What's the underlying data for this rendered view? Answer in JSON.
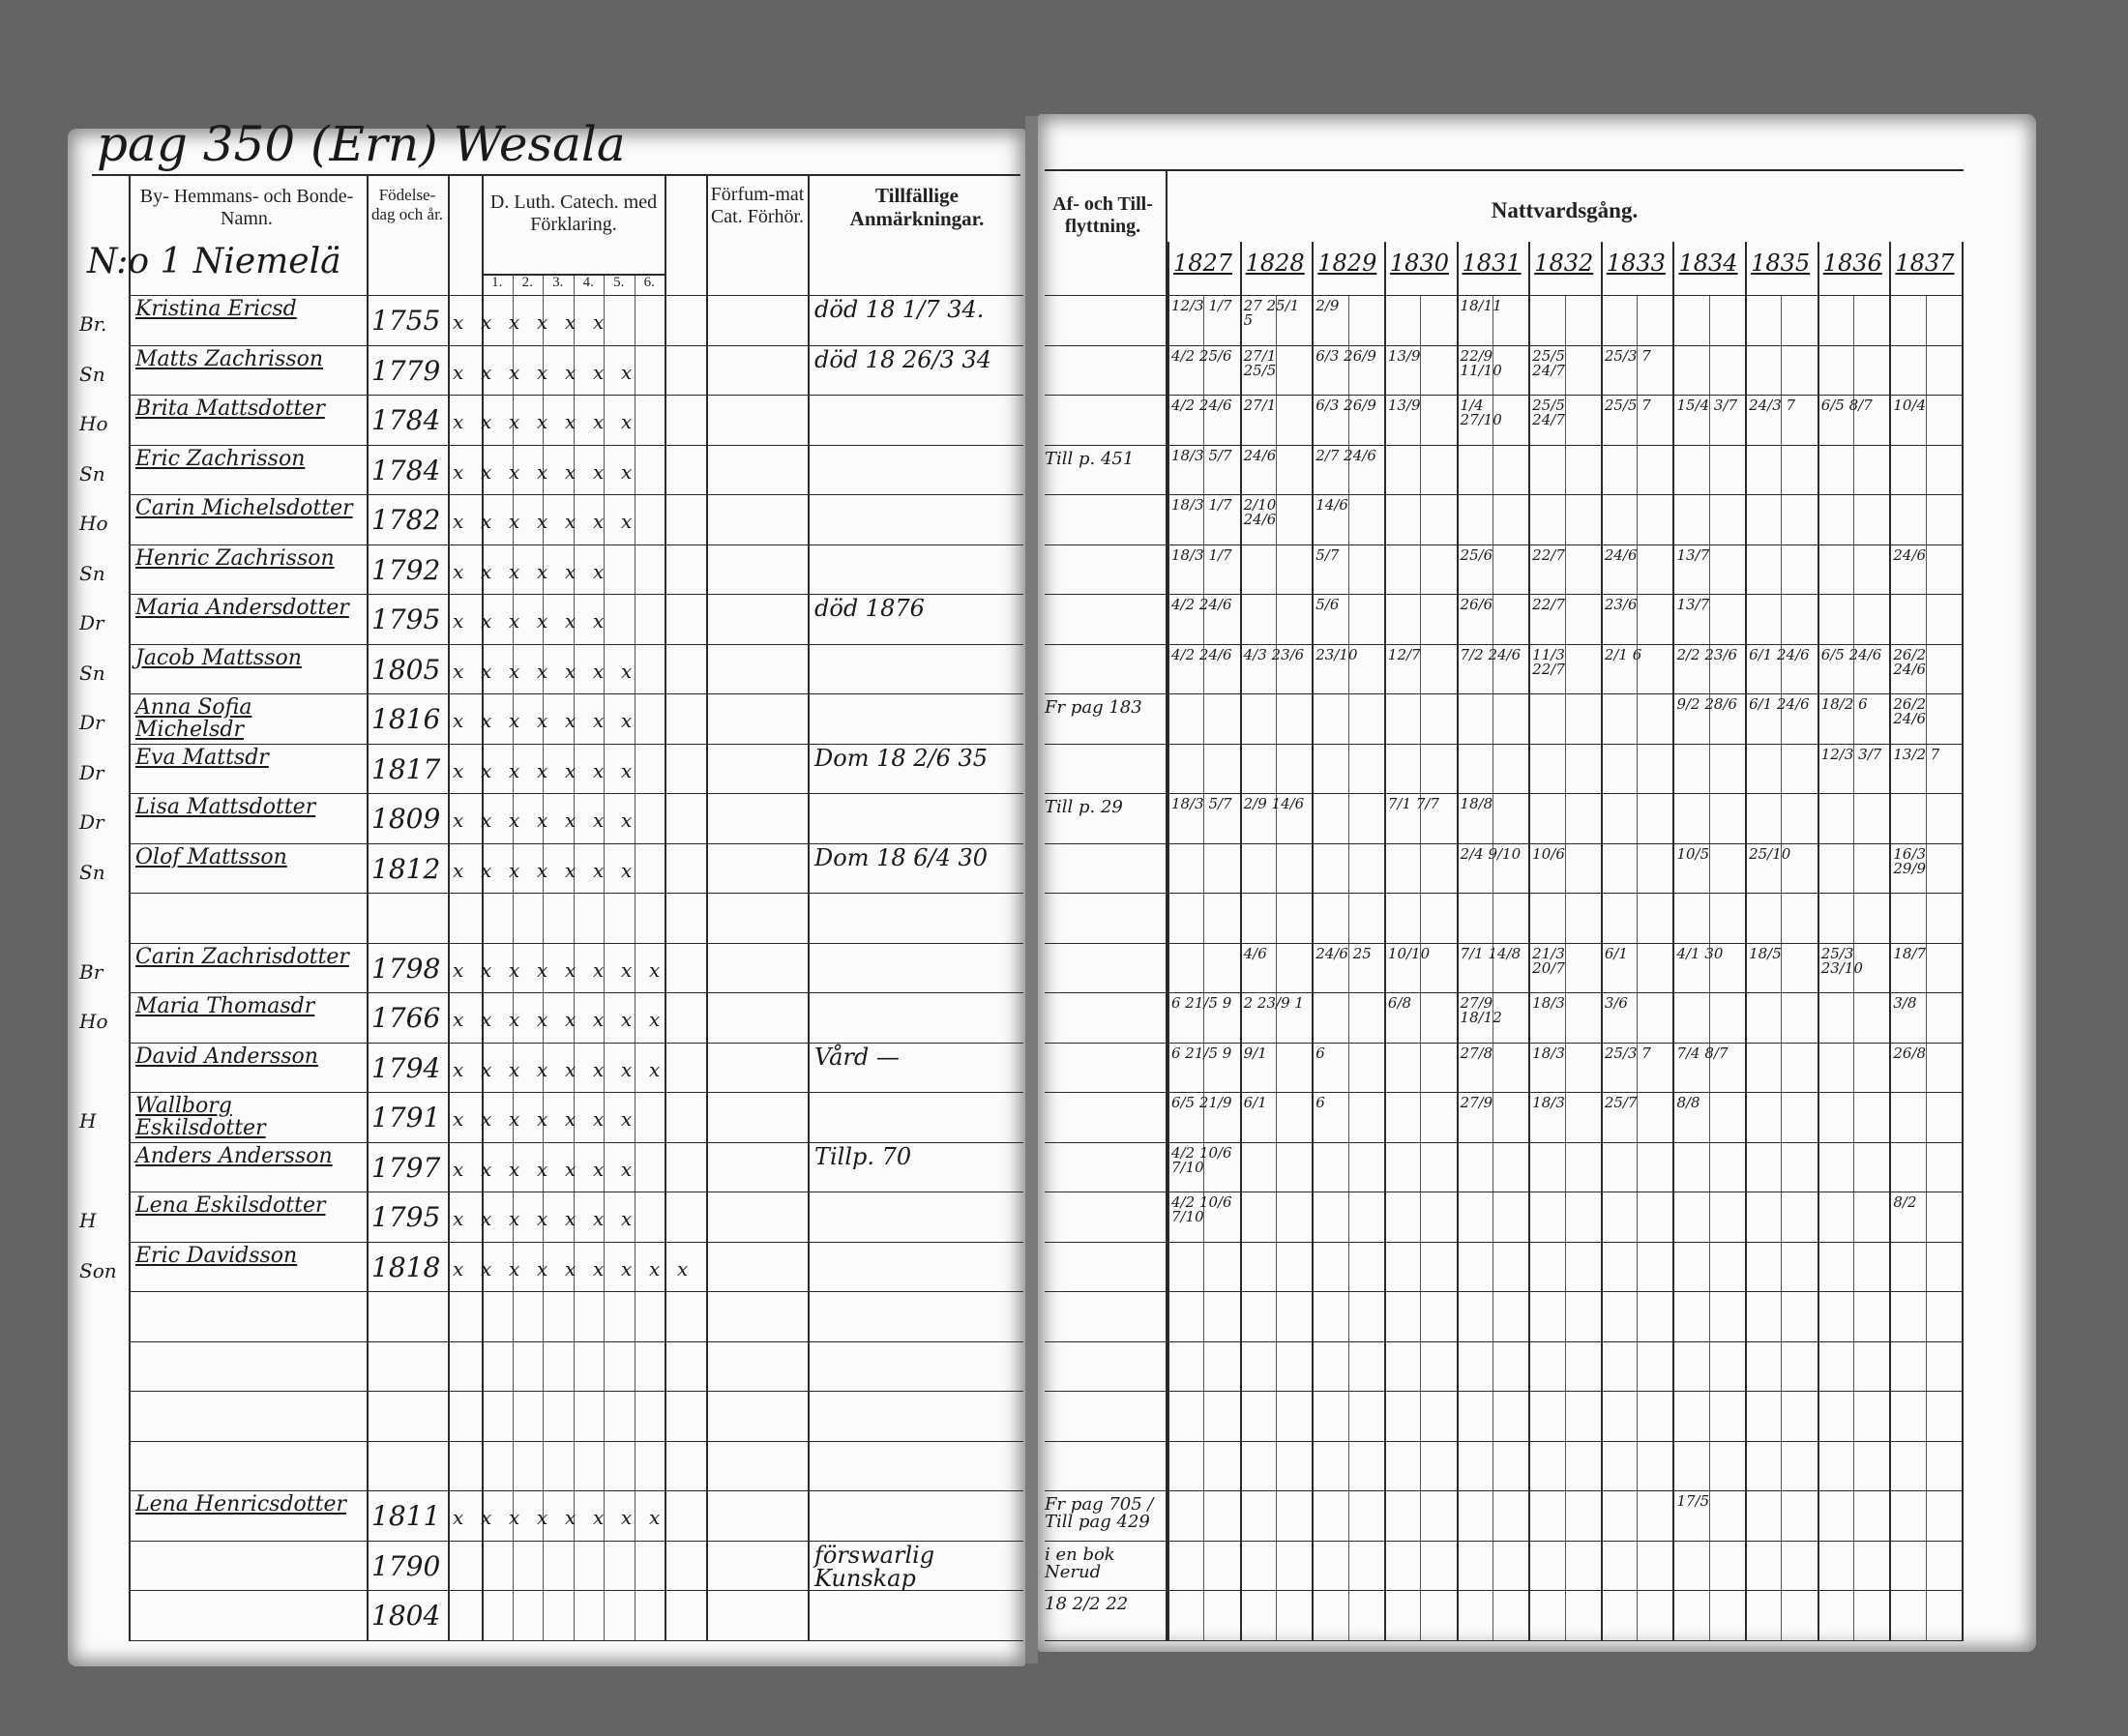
{
  "document": {
    "title": "pag 350 (Ern) Wesala",
    "farm": "N:o 1 Niemelä",
    "left_headers": {
      "name": "By- Hemmans- och Bonde-Namn.",
      "birth": "Födelse-dag och år.",
      "catechism": "D. Luth. Catech. med Förklaring.",
      "catechism_parts": [
        "1.",
        "2.",
        "3.",
        "4.",
        "5.",
        "6."
      ],
      "missed": "Förfum-mat Cat. Förhör.",
      "remarks": "Tillfällige Anmärkningar."
    },
    "right_headers": {
      "moving": "Af- och Till-flyttning.",
      "communion": "Nattvardsgång.",
      "years": [
        "1827",
        "1828",
        "1829",
        "1830",
        "1831",
        "1832",
        "1833",
        "1834",
        "1835",
        "1836",
        "1837"
      ]
    },
    "rows": [
      {
        "prefix": "Br.",
        "name": "Kristina Ericsd",
        "born": "1755",
        "marks": "x x x x x x",
        "remark": "död 18 1/7 34.",
        "move": "",
        "communion": {
          "1827": "12/3 1/7",
          "1828": "27 25/1 5",
          "1829": "2/9",
          "1831": "18/11"
        }
      },
      {
        "prefix": "Sn",
        "name": "Matts Zachrisson",
        "born": "1779",
        "marks": "x x x x x x x",
        "remark": "död 18 26/3 34",
        "move": "",
        "communion": {
          "1827": "4/2 25/6",
          "1828": "27/1 25/5",
          "1829": "6/3 26/9",
          "1830": "13/9",
          "1831": "22/9 11/10",
          "1832": "25/5 24/7",
          "1833": "25/3 7"
        }
      },
      {
        "prefix": "Ho",
        "name": "Brita Mattsdotter",
        "born": "1784",
        "marks": "x x x x x x x",
        "remark": "",
        "move": "",
        "communion": {
          "1827": "4/2 24/6",
          "1828": "27/1",
          "1829": "6/3 26/9",
          "1830": "13/9",
          "1831": "1/4 27/10",
          "1832": "25/5 24/7",
          "1833": "25/5 7",
          "1834": "15/4 3/7",
          "1835": "24/3 7",
          "1836": "6/5 8/7",
          "1837": "10/4"
        }
      },
      {
        "prefix": "Sn",
        "name": "Eric Zachrisson",
        "born": "1784",
        "marks": "x x x x x x x",
        "remark": "",
        "move": "Till p. 451",
        "communion": {
          "1827": "18/3 5/7",
          "1828": "24/6",
          "1829": "2/7 24/6"
        }
      },
      {
        "prefix": "Ho",
        "name": "Carin Michelsdotter",
        "born": "1782",
        "marks": "x x x x x x x",
        "remark": "",
        "move": "",
        "communion": {
          "1827": "18/3 1/7",
          "1828": "2/10 24/6",
          "1829": "14/6"
        }
      },
      {
        "prefix": "Sn",
        "name": "Henric Zachrisson",
        "born": "1792",
        "marks": "x x x x x x",
        "remark": "",
        "move": "",
        "communion": {
          "1827": "18/3 1/7",
          "1829": "5/7",
          "1831": "25/6",
          "1832": "22/7",
          "1833": "24/6",
          "1834": "13/7",
          "1837": "24/6"
        }
      },
      {
        "prefix": "Dr",
        "name": "Maria Andersdotter",
        "born": "1795",
        "marks": "x x x x x x",
        "remark": "död 1876",
        "move": "",
        "communion": {
          "1827": "4/2 24/6",
          "1829": "5/6",
          "1831": "26/6",
          "1832": "22/7",
          "1833": "23/6",
          "1834": "13/7"
        }
      },
      {
        "prefix": "Sn",
        "name": "Jacob Mattsson",
        "born": "1805",
        "marks": "x x x x x x x",
        "remark": "",
        "move": "",
        "communion": {
          "1827": "4/2 24/6",
          "1828": "4/3 23/6",
          "1829": "23/10",
          "1830": "12/7",
          "1831": "7/2 24/6",
          "1832": "11/3 22/7",
          "1833": "2/1 6",
          "1834": "2/2 23/6",
          "1835": "6/1 24/6",
          "1836": "6/5 24/6",
          "1837": "26/2 24/6"
        }
      },
      {
        "prefix": "Dr",
        "name": "Anna Sofia Michelsdr",
        "born": "1816",
        "marks": "x x x x x x x",
        "remark": "",
        "move": "Fr pag 183",
        "communion": {
          "1834": "9/2 28/6",
          "1835": "6/1 24/6",
          "1836": "18/2 6",
          "1837": "26/2 24/6"
        }
      },
      {
        "prefix": "Dr",
        "name": "Eva Mattsdr",
        "born": "1817",
        "marks": "x x x x x x x",
        "remark": "Dom 18 2/6 35",
        "move": "",
        "communion": {
          "1836": "12/3 3/7",
          "1837": "13/2 7"
        }
      },
      {
        "prefix": "Dr",
        "name": "Lisa Mattsdotter",
        "born": "1809",
        "marks": "x x x x x x x",
        "remark": "",
        "move": "Till p. 29",
        "communion": {
          "1827": "18/3 5/7",
          "1828": "2/9 14/6",
          "1830": "7/1 7/7",
          "1831": "18/8"
        }
      },
      {
        "prefix": "Sn",
        "name": "Olof Mattsson",
        "born": "1812",
        "marks": "x x x x x x x",
        "remark": "Dom 18 6/4 30",
        "move": "",
        "communion": {
          "1831": "2/4 9/10",
          "1832": "10/6",
          "1834": "10/5",
          "1835": "25/10",
          "1837": "16/3 29/9"
        }
      },
      {
        "prefix": "",
        "name": "",
        "born": "",
        "marks": "",
        "remark": "",
        "move": "",
        "communion": {}
      },
      {
        "prefix": "Br",
        "name": "Carin Zachrisdotter",
        "born": "1798",
        "marks": "x x x x x x x x",
        "remark": "",
        "move": "",
        "communion": {
          "1828": "4/6",
          "1829": "24/6 25",
          "1830": "10/10",
          "1831": "7/1 14/8",
          "1832": "21/3 20/7",
          "1833": "6/1",
          "1834": "4/1 30",
          "1835": "18/5",
          "1836": "25/3 23/10",
          "1837": "18/7"
        }
      },
      {
        "prefix": "Ho",
        "name": "Maria Thomasdr",
        "born": "1766",
        "marks": "x x x x x x x x",
        "remark": "",
        "move": "",
        "communion": {
          "1827": "6 21/5 9",
          "1828": "2 23/9 1",
          "1830": "6/8",
          "1831": "27/9 18/12",
          "1832": "18/3",
          "1833": "3/6",
          "1837": "3/8"
        }
      },
      {
        "prefix": "",
        "name": "David Andersson",
        "born": "1794",
        "marks": "x x x x x x x x",
        "remark": "Vård —",
        "move": "",
        "communion": {
          "1827": "6 21/5 9",
          "1828": "9/1",
          "1829": "6",
          "1831": "27/8",
          "1832": "18/3",
          "1833": "25/3 7",
          "1834": "7/4 8/7",
          "1837": "26/8"
        }
      },
      {
        "prefix": "H",
        "name": "Wallborg Eskilsdotter",
        "born": "1791",
        "marks": "x x x x x x x",
        "remark": "",
        "move": "",
        "communion": {
          "1827": "6/5 21/9",
          "1828": "6/1",
          "1829": "6",
          "1831": "27/9",
          "1832": "18/3",
          "1833": "25/7",
          "1834": "8/8"
        }
      },
      {
        "prefix": "",
        "name": "Anders Andersson",
        "born": "1797",
        "marks": "x x x x x x x",
        "remark": "Tillp. 70",
        "move": "",
        "communion": {
          "1827": "4/2 10/6 7/10"
        }
      },
      {
        "prefix": "H",
        "name": "Lena Eskilsdotter",
        "born": "1795",
        "marks": "x x x x x x x",
        "remark": "",
        "move": "",
        "communion": {
          "1827": "4/2 10/6 7/10",
          "1837": "8/2"
        }
      },
      {
        "prefix": "Son",
        "name": "Eric Davidsson",
        "born": "1818",
        "marks": "x x x x x x x x x",
        "remark": "",
        "move": "",
        "communion": {}
      },
      {
        "prefix": "",
        "name": "",
        "born": "",
        "marks": "",
        "remark": "",
        "move": "",
        "communion": {}
      },
      {
        "prefix": "",
        "name": "",
        "born": "",
        "marks": "",
        "remark": "",
        "move": "",
        "communion": {}
      },
      {
        "prefix": "",
        "name": "",
        "born": "",
        "marks": "",
        "remark": "",
        "move": "",
        "communion": {}
      },
      {
        "prefix": "",
        "name": "",
        "born": "",
        "marks": "",
        "remark": "",
        "move": "",
        "communion": {}
      },
      {
        "prefix": "",
        "name": "Lena Henricsdotter",
        "born": "1811",
        "marks": "x x x x x x x x",
        "remark": "",
        "move": "Fr pag 705 / Till pag 429",
        "communion": {
          "1834": "17/5"
        }
      },
      {
        "prefix": "",
        "name": "",
        "born": "1790",
        "marks": "",
        "remark": "förswarlig Kunskap",
        "move": "i en bok Nerud",
        "communion": {}
      },
      {
        "prefix": "",
        "name": "",
        "born": "1804",
        "marks": "",
        "remark": "",
        "move": "18 2/2 22",
        "communion": {}
      }
    ]
  }
}
